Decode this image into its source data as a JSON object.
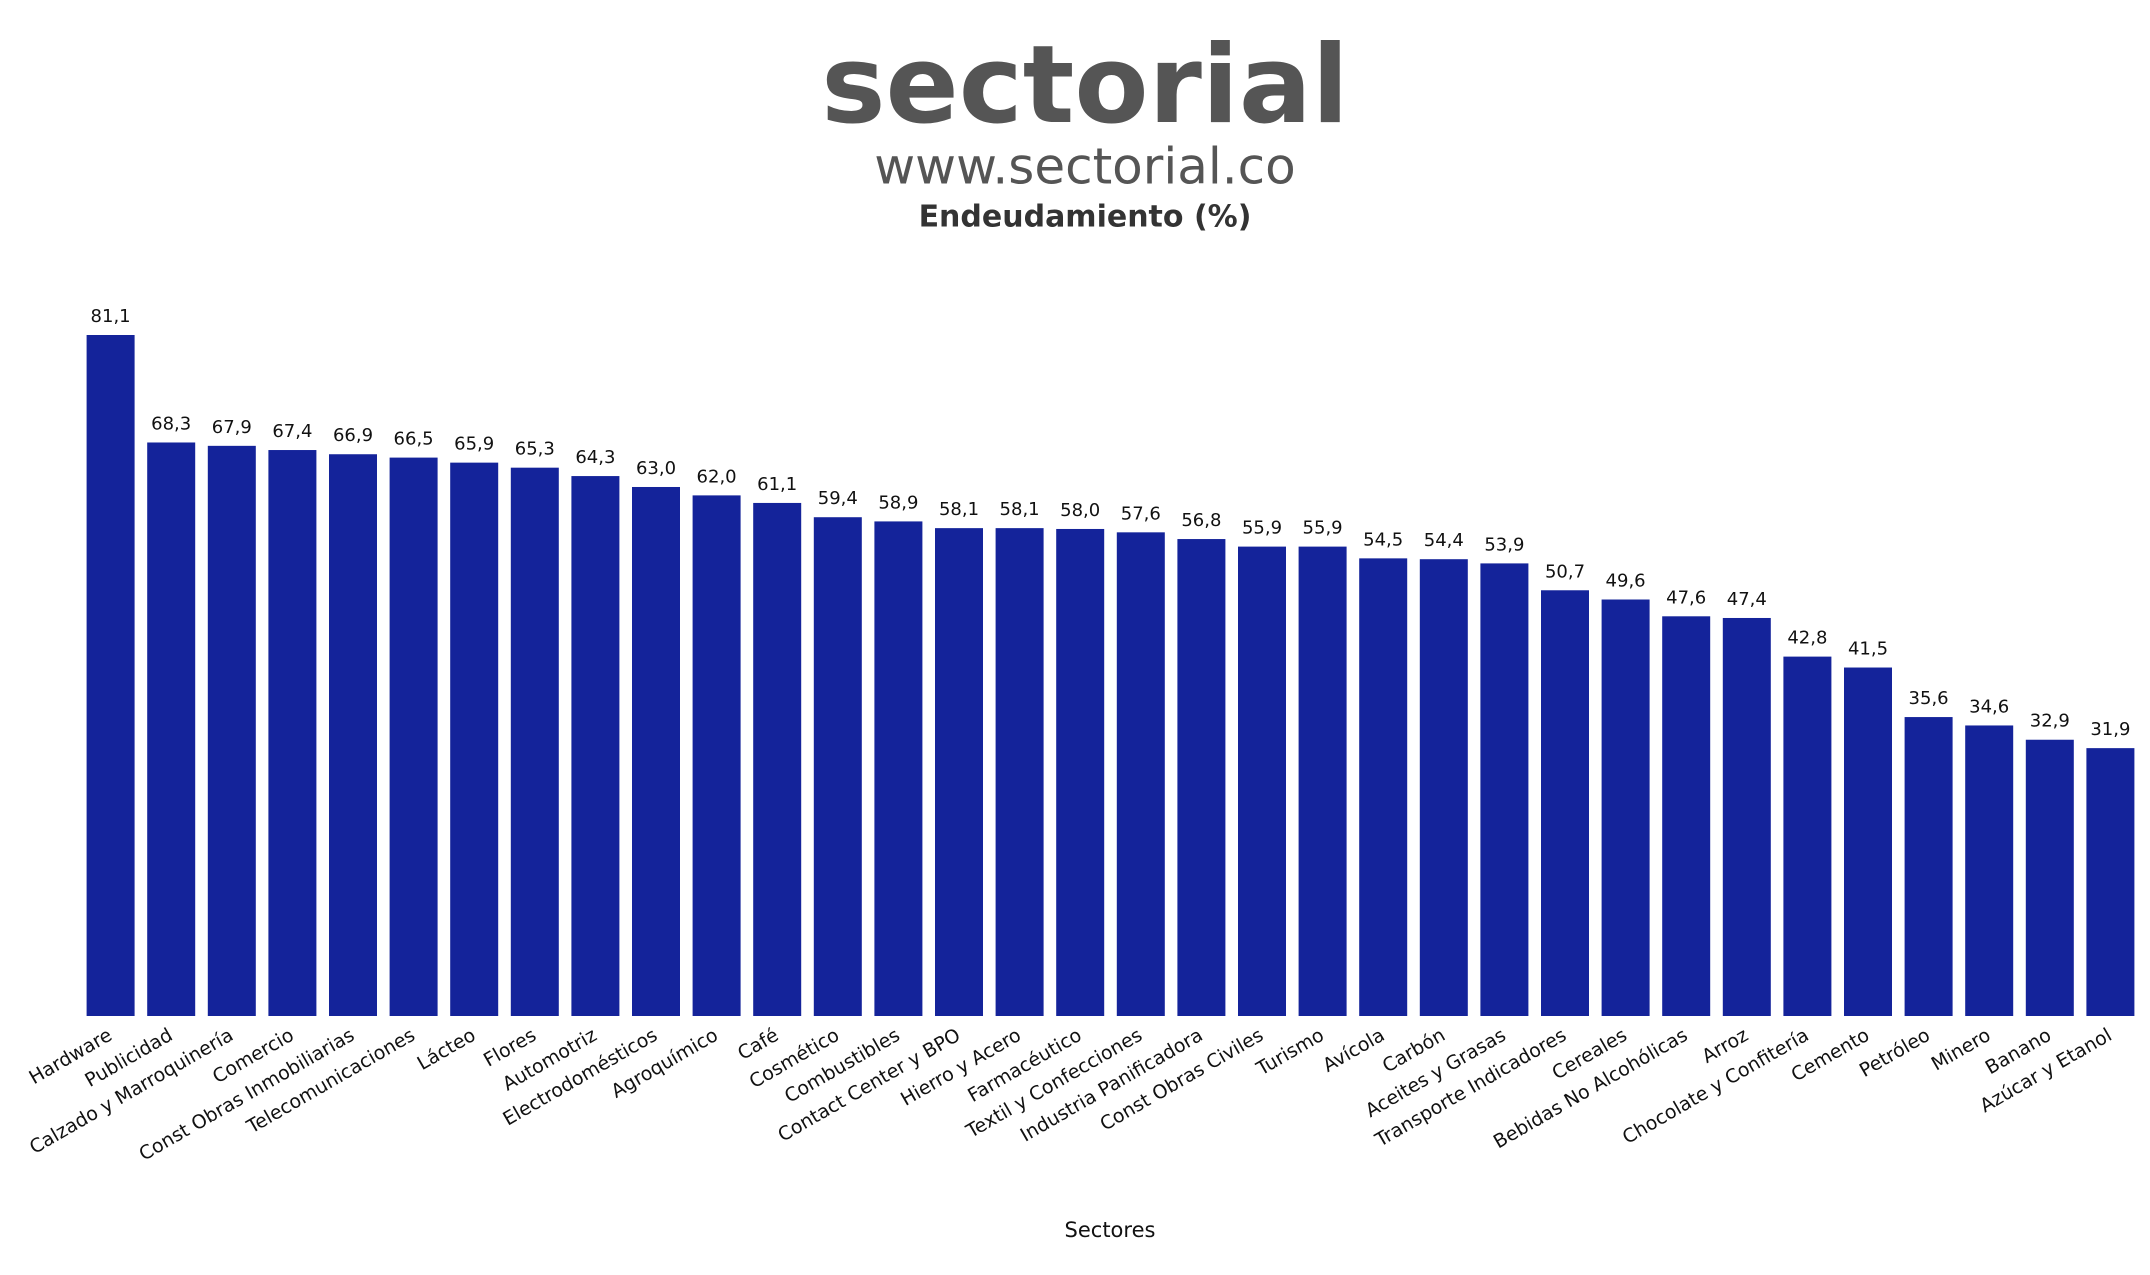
{
  "chart_data": {
    "type": "bar",
    "logo": "sectorial",
    "website": "www.sectorial.co",
    "title": "Endeudamiento (%)",
    "x_label": "Sectores",
    "color": "#14239a",
    "categories": [
      "Hardware",
      "Publicidad",
      "Calzado y Marroquinería",
      "Comercio",
      "Const Obras Inmobiliarias",
      "Telecomunicaciones",
      "Lácteo",
      "Flores",
      "Automotriz",
      "Electrodomésticos",
      "Agroquímico",
      "Café",
      "Cosmético",
      "Combustibles",
      "Contact Center y BPO",
      "Hierro y Acero",
      "Farmacéutico",
      "Textil y Confecciones",
      "Industria Panificadora",
      "Const Obras Civiles",
      "Turismo",
      "Avícola",
      "Carbón",
      "Aceites y Grasas",
      "Transporte Indicadores",
      "Cereales",
      "Bebidas No Alcohólicas",
      "Arroz",
      "Chocolate y Confitería",
      "Cemento",
      "Petróleo",
      "Minero",
      "Banano",
      "Azúcar y Etanol"
    ],
    "values": [
      81.1,
      68.3,
      67.9,
      67.4,
      66.9,
      66.5,
      65.9,
      65.3,
      64.3,
      63.0,
      62.0,
      61.1,
      59.4,
      58.9,
      58.1,
      58.1,
      58.0,
      57.6,
      56.8,
      55.9,
      55.9,
      54.5,
      54.4,
      53.9,
      50.7,
      49.6,
      47.6,
      47.4,
      42.8,
      41.5,
      35.6,
      34.6,
      32.9,
      31.9
    ],
    "value_labels": [
      "81,1",
      "68,3",
      "67,9",
      "67,4",
      "66,9",
      "66,5",
      "65,9",
      "65,3",
      "64,3",
      "63,0",
      "62,0",
      "61,1",
      "59,4",
      "58,9",
      "58,1",
      "58,1",
      "58,0",
      "57,6",
      "56,8",
      "55,9",
      "55,9",
      "54,5",
      "54,4",
      "53,9",
      "50,7",
      "49,6",
      "47,6",
      "47,4",
      "42,8",
      "41,5",
      "35,6",
      "34,6",
      "32,9",
      "31,9"
    ]
  }
}
